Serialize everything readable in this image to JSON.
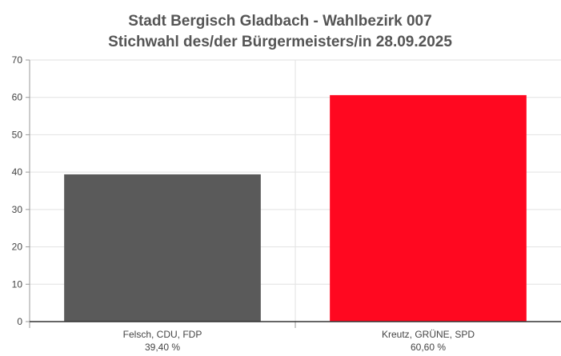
{
  "chart_data": {
    "type": "bar",
    "title": "Stadt Bergisch Gladbach - Wahlbezirk 007",
    "subtitle": "Stichwahl des/der Bürgermeisters/in 28.09.2025",
    "categories": [
      "Felsch, CDU, FDP",
      "Kreutz, GRÜNE, SPD"
    ],
    "value_labels": [
      "39,40 %",
      "60,60 %"
    ],
    "values": [
      39.4,
      60.6
    ],
    "colors": [
      "#5a5a5a",
      "#ff0820"
    ],
    "yticks": [
      "0",
      "10",
      "20",
      "30",
      "40",
      "50",
      "60",
      "70"
    ],
    "ylim": [
      0,
      70
    ],
    "xlabel": "",
    "ylabel": "",
    "grid": true,
    "legend": "none"
  }
}
